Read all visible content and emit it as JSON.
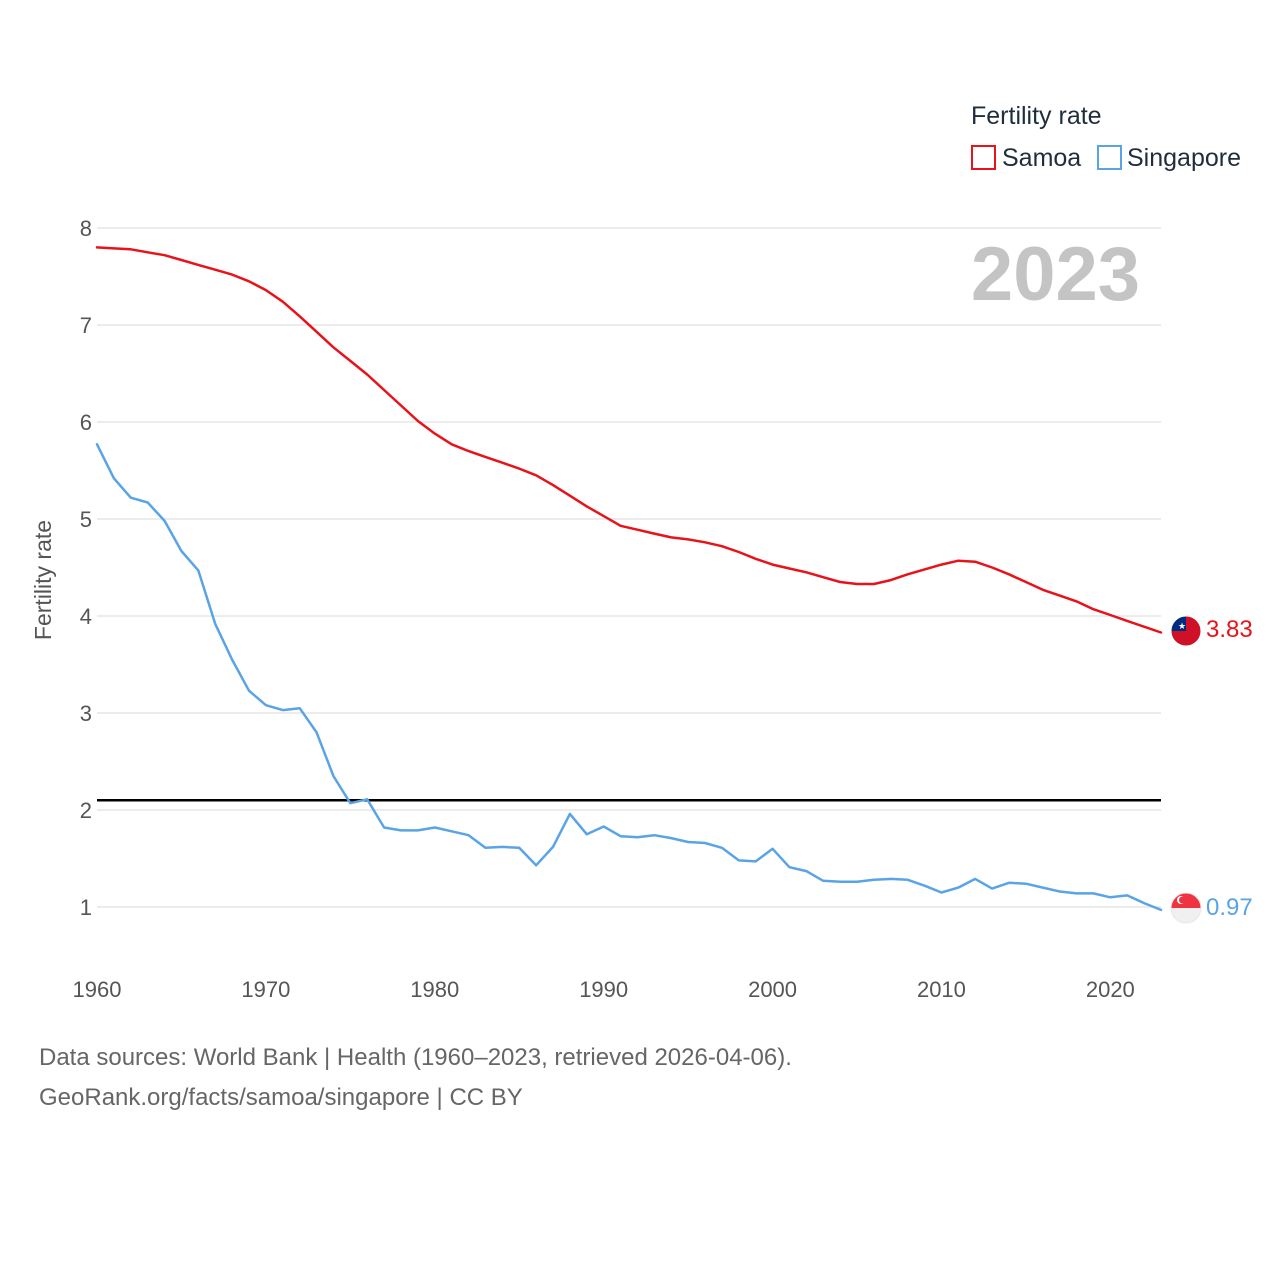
{
  "colors": {
    "samoa": "#e8131a",
    "singapore": "#5aa4e6",
    "grid": "#e6e6e6",
    "reference": "#000000"
  },
  "chart_data": {
    "type": "line",
    "title": "",
    "xlabel": "",
    "ylabel": "Fertility rate",
    "xlim": [
      1960,
      2023
    ],
    "ylim": [
      0.5,
      8.3
    ],
    "x_ticks": [
      1960,
      1970,
      1980,
      1990,
      2000,
      2010,
      2020
    ],
    "y_ticks": [
      1,
      2,
      3,
      4,
      5,
      6,
      7,
      8
    ],
    "grid": true,
    "year_label": "2023",
    "legend": {
      "title": "Fertility rate",
      "position": "top-right"
    },
    "reference_line": {
      "y": 2.1
    },
    "x": [
      1960,
      1961,
      1962,
      1963,
      1964,
      1965,
      1966,
      1967,
      1968,
      1969,
      1970,
      1971,
      1972,
      1973,
      1974,
      1975,
      1976,
      1977,
      1978,
      1979,
      1980,
      1981,
      1982,
      1983,
      1984,
      1985,
      1986,
      1987,
      1988,
      1989,
      1990,
      1991,
      1992,
      1993,
      1994,
      1995,
      1996,
      1997,
      1998,
      1999,
      2000,
      2001,
      2002,
      2003,
      2004,
      2005,
      2006,
      2007,
      2008,
      2009,
      2010,
      2011,
      2012,
      2013,
      2014,
      2015,
      2016,
      2017,
      2018,
      2019,
      2020,
      2021,
      2022,
      2023
    ],
    "series": [
      {
        "name": "Samoa",
        "end_label": "3.83",
        "values": [
          7.8,
          7.79,
          7.78,
          7.75,
          7.72,
          7.67,
          7.62,
          7.57,
          7.52,
          7.45,
          7.36,
          7.24,
          7.09,
          6.93,
          6.77,
          6.63,
          6.49,
          6.33,
          6.17,
          6.01,
          5.88,
          5.77,
          5.7,
          5.64,
          5.58,
          5.52,
          5.45,
          5.35,
          5.24,
          5.13,
          5.03,
          4.93,
          4.89,
          4.85,
          4.81,
          4.79,
          4.76,
          4.72,
          4.66,
          4.59,
          4.53,
          4.49,
          4.45,
          4.4,
          4.35,
          4.33,
          4.33,
          4.37,
          4.43,
          4.48,
          4.53,
          4.57,
          4.56,
          4.5,
          4.43,
          4.35,
          4.27,
          4.21,
          4.15,
          4.07,
          4.01,
          3.95,
          3.89,
          3.83
        ]
      },
      {
        "name": "Singapore",
        "end_label": "0.97",
        "values": [
          5.77,
          5.42,
          5.22,
          5.17,
          4.98,
          4.67,
          4.47,
          3.92,
          3.55,
          3.23,
          3.08,
          3.03,
          3.05,
          2.8,
          2.35,
          2.07,
          2.11,
          1.82,
          1.79,
          1.79,
          1.82,
          1.78,
          1.74,
          1.61,
          1.62,
          1.61,
          1.43,
          1.62,
          1.96,
          1.75,
          1.83,
          1.73,
          1.72,
          1.74,
          1.71,
          1.67,
          1.66,
          1.61,
          1.48,
          1.47,
          1.6,
          1.41,
          1.37,
          1.27,
          1.26,
          1.26,
          1.28,
          1.29,
          1.28,
          1.22,
          1.15,
          1.2,
          1.29,
          1.19,
          1.25,
          1.24,
          1.2,
          1.16,
          1.14,
          1.14,
          1.1,
          1.12,
          1.04,
          0.97
        ]
      }
    ]
  },
  "footer": {
    "line1": "Data sources: World Bank | Health (1960–2023, retrieved 2026-04-06).",
    "line2": "GeoRank.org/facts/samoa/singapore | CC BY"
  }
}
